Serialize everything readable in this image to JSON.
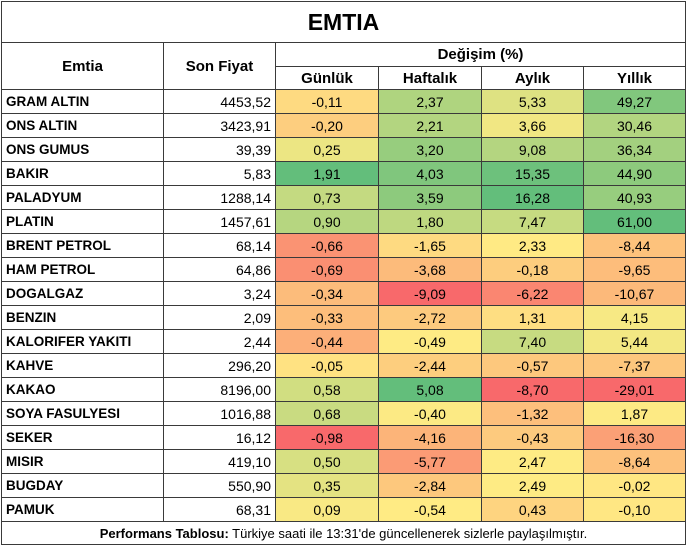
{
  "title": "EMTIA",
  "headers": {
    "emtia": "Emtia",
    "son_fiyat": "Son Fiyat",
    "degisim": "Değişim (%)",
    "gunluk": "Günlük",
    "haftalik": "Haftalık",
    "aylik": "Aylık",
    "yillik": "Yıllık"
  },
  "rows": [
    {
      "name": "GRAM ALTIN",
      "price": "4453,52",
      "gunluk": "-0,11",
      "haftalik": "2,37",
      "aylik": "5,33",
      "yillik": "49,27"
    },
    {
      "name": "ONS ALTIN",
      "price": "3423,91",
      "gunluk": "-0,20",
      "haftalik": "2,21",
      "aylik": "3,66",
      "yillik": "30,46"
    },
    {
      "name": "ONS GUMUS",
      "price": "39,39",
      "gunluk": "0,25",
      "haftalik": "3,20",
      "aylik": "9,08",
      "yillik": "36,34"
    },
    {
      "name": "BAKIR",
      "price": "5,83",
      "gunluk": "1,91",
      "haftalik": "4,03",
      "aylik": "15,35",
      "yillik": "44,90"
    },
    {
      "name": "PALADYUM",
      "price": "1288,14",
      "gunluk": "0,73",
      "haftalik": "3,59",
      "aylik": "16,28",
      "yillik": "40,93"
    },
    {
      "name": "PLATIN",
      "price": "1457,61",
      "gunluk": "0,90",
      "haftalik": "1,80",
      "aylik": "7,47",
      "yillik": "61,00"
    },
    {
      "name": "BRENT PETROL",
      "price": "68,14",
      "gunluk": "-0,66",
      "haftalik": "-1,65",
      "aylik": "2,33",
      "yillik": "-8,44"
    },
    {
      "name": "HAM PETROL",
      "price": "64,86",
      "gunluk": "-0,69",
      "haftalik": "-3,68",
      "aylik": "-0,18",
      "yillik": "-9,65"
    },
    {
      "name": "DOGALGAZ",
      "price": "3,24",
      "gunluk": "-0,34",
      "haftalik": "-9,09",
      "aylik": "-6,22",
      "yillik": "-10,67"
    },
    {
      "name": "BENZIN",
      "price": "2,09",
      "gunluk": "-0,33",
      "haftalik": "-2,72",
      "aylik": "1,31",
      "yillik": "4,15"
    },
    {
      "name": "KALORIFER YAKITI",
      "price": "2,44",
      "gunluk": "-0,44",
      "haftalik": "-0,49",
      "aylik": "7,40",
      "yillik": "5,44"
    },
    {
      "name": "KAHVE",
      "price": "296,20",
      "gunluk": "-0,05",
      "haftalik": "-2,44",
      "aylik": "-0,57",
      "yillik": "-7,37"
    },
    {
      "name": "KAKAO",
      "price": "8196,00",
      "gunluk": "0,58",
      "haftalik": "5,08",
      "aylik": "-8,70",
      "yillik": "-29,01"
    },
    {
      "name": "SOYA FASULYESI",
      "price": "1016,88",
      "gunluk": "0,68",
      "haftalik": "-0,40",
      "aylik": "-1,32",
      "yillik": "1,87"
    },
    {
      "name": "SEKER",
      "price": "16,12",
      "gunluk": "-0,98",
      "haftalik": "-4,16",
      "aylik": "-0,43",
      "yillik": "-16,30"
    },
    {
      "name": "MISIR",
      "price": "419,10",
      "gunluk": "0,50",
      "haftalik": "-5,77",
      "aylik": "2,47",
      "yillik": "-8,64"
    },
    {
      "name": "BUGDAY",
      "price": "550,90",
      "gunluk": "0,35",
      "haftalik": "-2,84",
      "aylik": "2,49",
      "yillik": "-0,02"
    },
    {
      "name": "PAMUK",
      "price": "68,31",
      "gunluk": "0,09",
      "haftalik": "-0,54",
      "aylik": "0,43",
      "yillik": "-0,10"
    }
  ],
  "footer": {
    "label": "Performans Tablosu:",
    "text": " Türkiye saati ile 13:31'de güncellenerek sizlerle paylaşılmıştır."
  },
  "colors": {
    "strong_green": "#63be7b",
    "yellow": "#ffeb84",
    "strong_red": "#f8696b"
  }
}
